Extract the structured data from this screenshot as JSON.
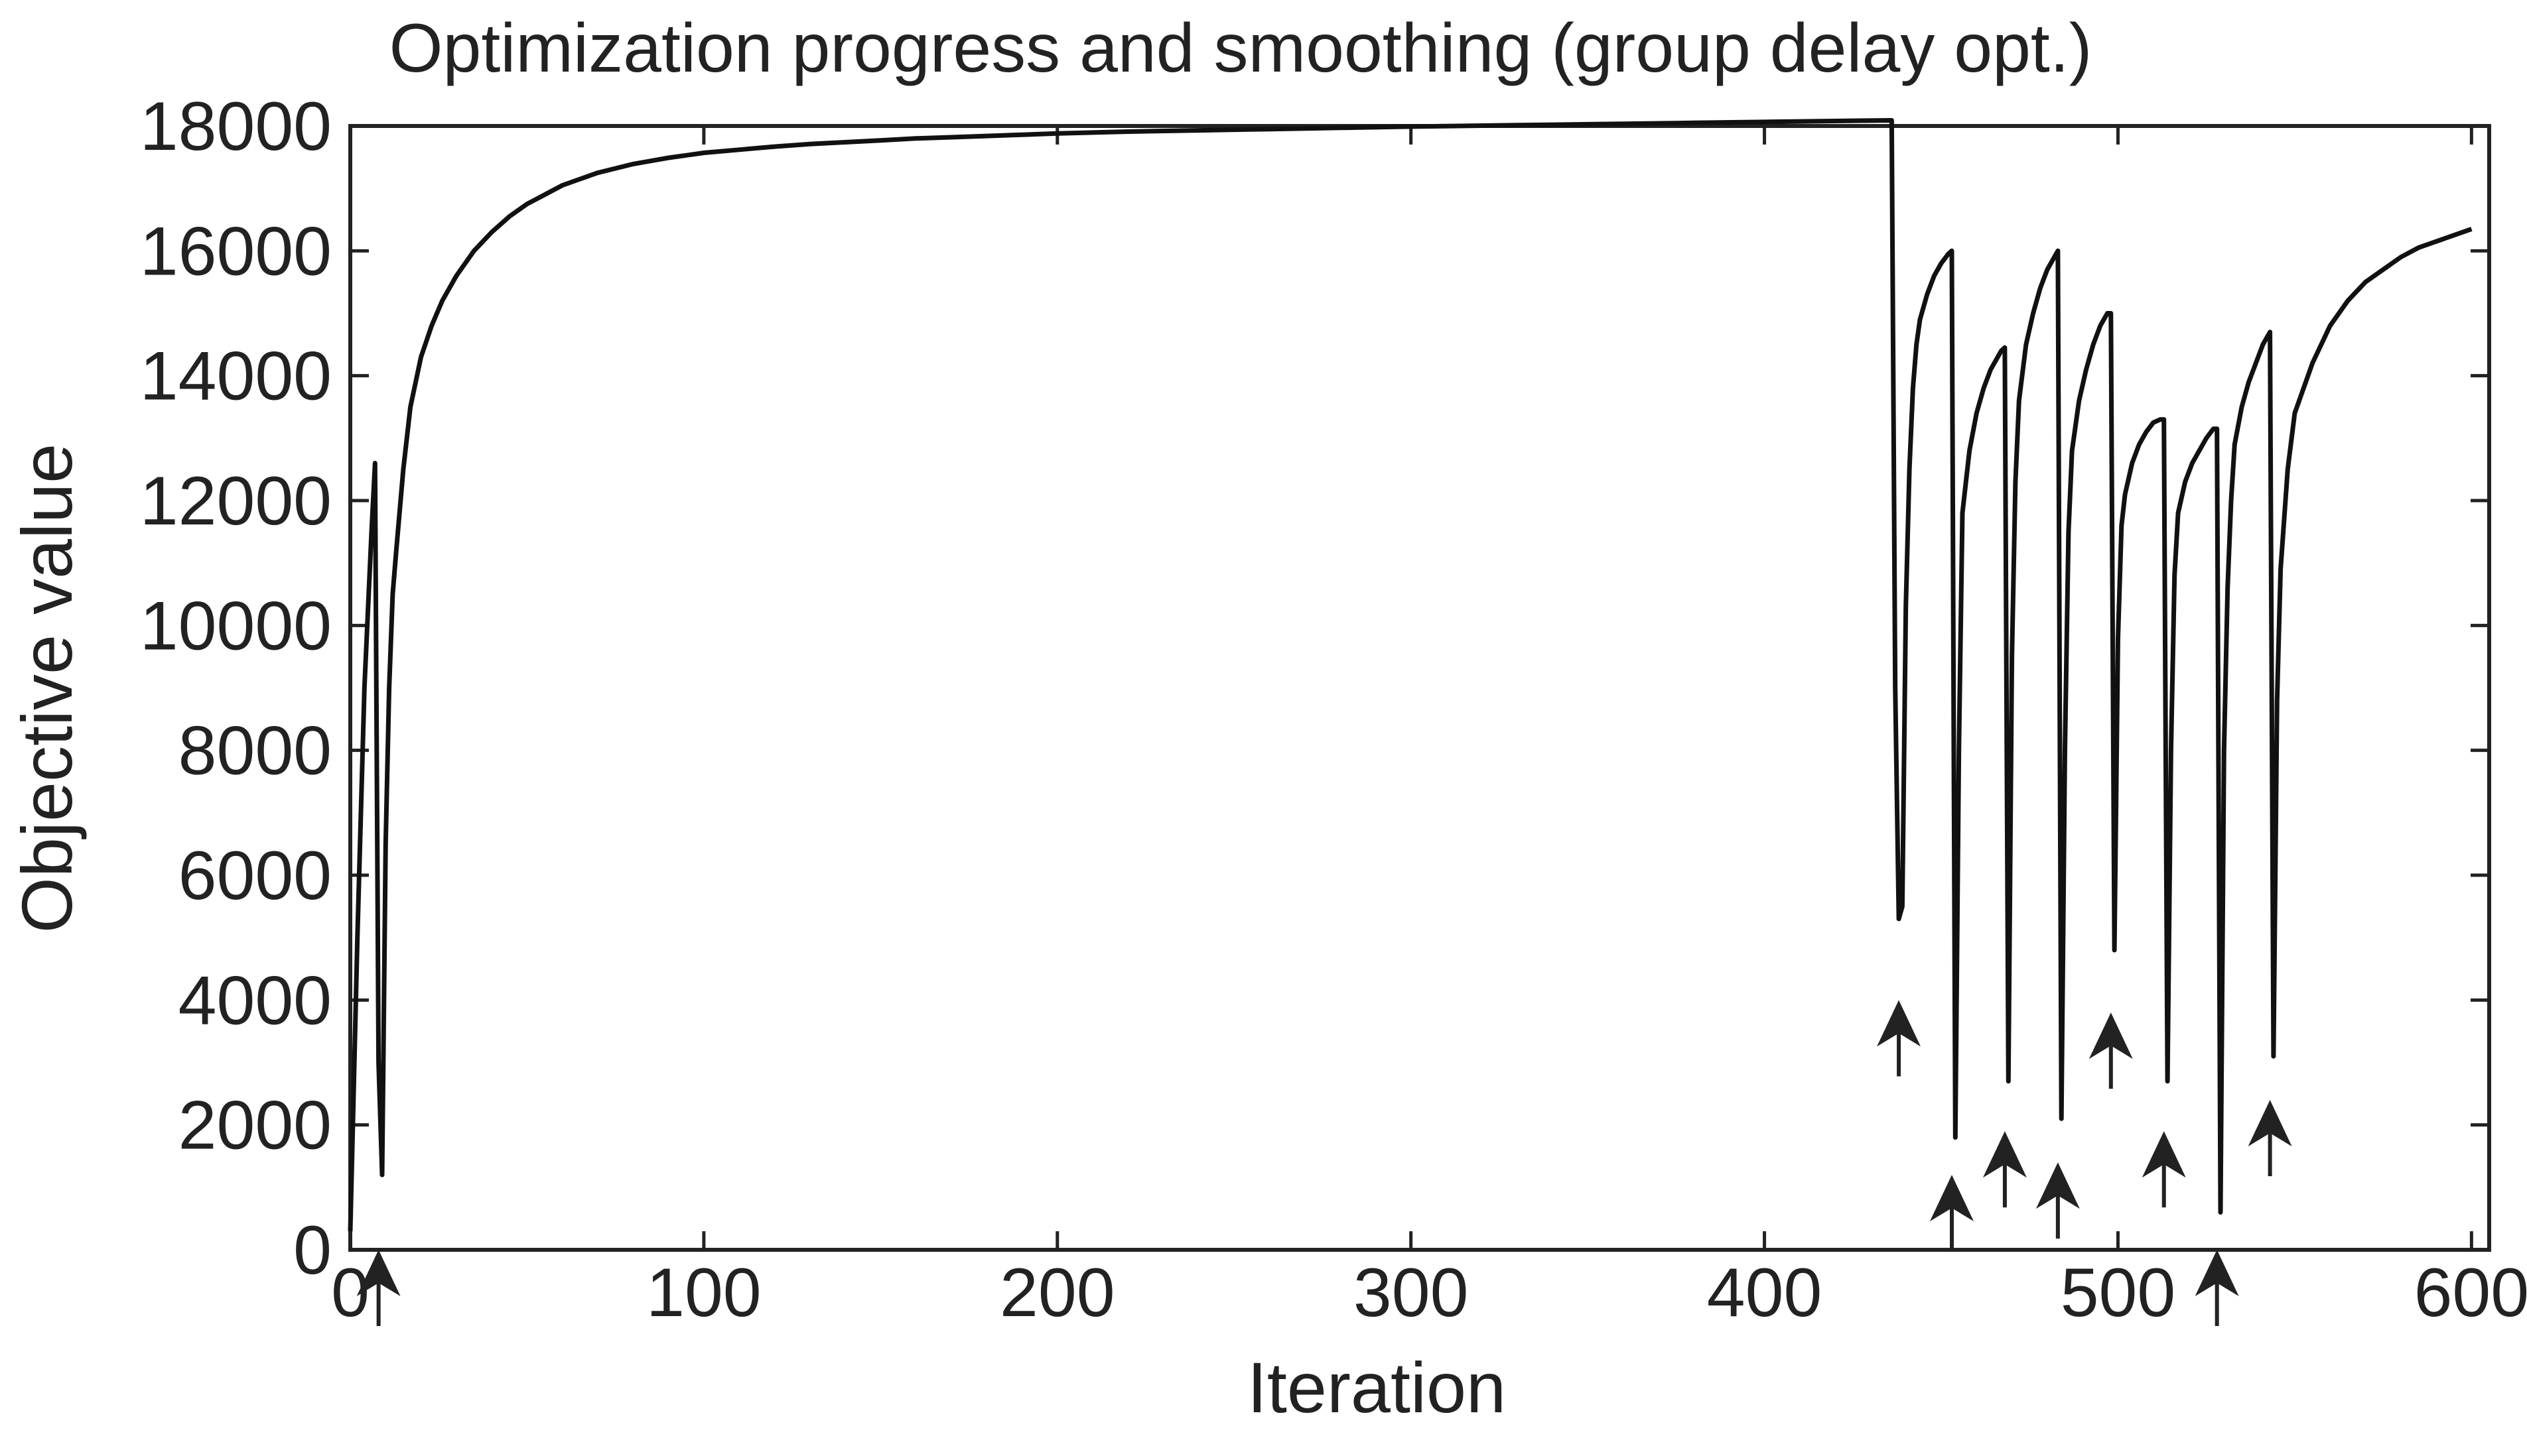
{
  "chart_data": {
    "type": "line",
    "title": "Optimization progress and smoothing (group delay opt.)",
    "xlabel": "Iteration",
    "ylabel": "Objective value",
    "xlim": [
      0,
      605
    ],
    "ylim": [
      0,
      18000
    ],
    "xticks": [
      0,
      100,
      200,
      300,
      400,
      500,
      600
    ],
    "yticks": [
      0,
      2000,
      4000,
      6000,
      8000,
      10000,
      12000,
      14000,
      16000,
      18000
    ],
    "grid": false,
    "legend": "none",
    "series": [
      {
        "x": [
          0,
          2,
          4,
          6,
          7,
          8,
          9,
          10,
          11,
          12,
          13,
          15,
          17,
          20,
          23,
          26,
          30,
          35,
          40,
          45,
          50,
          55,
          60,
          65,
          70,
          75,
          80,
          85,
          90,
          95,
          100,
          110,
          120,
          130,
          140,
          150,
          160,
          170,
          180,
          190,
          200,
          210,
          220,
          230,
          240,
          250,
          260,
          270,
          280,
          290,
          300,
          320,
          340,
          360,
          380,
          400,
          420,
          436,
          437,
          438,
          439,
          440,
          441,
          442,
          443,
          444,
          446,
          448,
          450,
          452,
          453,
          454,
          455,
          456,
          458,
          460,
          462,
          464,
          466,
          467,
          468,
          469,
          470,
          471,
          472,
          474,
          476,
          478,
          480,
          482,
          483,
          484,
          485,
          486,
          487,
          489,
          491,
          493,
          495,
          497,
          498,
          499,
          500,
          501,
          502,
          504,
          506,
          508,
          510,
          512,
          513,
          514,
          515,
          516,
          517,
          519,
          521,
          523,
          525,
          527,
          528,
          529,
          530,
          531,
          532,
          533,
          535,
          537,
          539,
          541,
          543,
          544,
          545,
          546,
          548,
          550,
          555,
          560,
          565,
          570,
          575,
          580,
          585,
          590,
          595,
          600
        ],
        "y": [
          300,
          5000,
          9000,
          11500,
          12600,
          3000,
          1200,
          6500,
          9000,
          10500,
          11200,
          12500,
          13500,
          14300,
          14800,
          15200,
          15600,
          16000,
          16300,
          16550,
          16750,
          16900,
          17050,
          17150,
          17250,
          17320,
          17390,
          17440,
          17490,
          17530,
          17570,
          17620,
          17670,
          17710,
          17740,
          17770,
          17800,
          17820,
          17840,
          17860,
          17880,
          17895,
          17910,
          17920,
          17930,
          17940,
          17950,
          17960,
          17970,
          17980,
          17990,
          18005,
          18020,
          18035,
          18050,
          18065,
          18080,
          18090,
          9000,
          5300,
          5500,
          10300,
          12500,
          13800,
          14500,
          14900,
          15300,
          15600,
          15800,
          15950,
          16000,
          1800,
          8000,
          11800,
          12800,
          13400,
          13800,
          14100,
          14300,
          14400,
          14450,
          2700,
          9500,
          12300,
          13600,
          14500,
          15000,
          15400,
          15700,
          15900,
          16000,
          2100,
          8000,
          11500,
          12800,
          13600,
          14100,
          14500,
          14800,
          15000,
          15000,
          4800,
          9800,
          11600,
          12100,
          12600,
          12900,
          13100,
          13250,
          13300,
          13300,
          2700,
          8000,
          10800,
          11800,
          12300,
          12600,
          12800,
          13000,
          13150,
          13150,
          600,
          8000,
          10600,
          12000,
          12900,
          13500,
          13900,
          14200,
          14500,
          14700,
          3100,
          8800,
          10900,
          12500,
          13400,
          14200,
          14800,
          15200,
          15500,
          15700,
          15900,
          16050,
          16150,
          16250,
          16350
        ]
      }
    ],
    "annotations": [
      {
        "type": "arrow",
        "x": 8,
        "y": 0
      },
      {
        "type": "arrow",
        "x": 438,
        "y": 4000
      },
      {
        "type": "arrow",
        "x": 453,
        "y": 1200
      },
      {
        "type": "arrow",
        "x": 468,
        "y": 1900
      },
      {
        "type": "arrow",
        "x": 483,
        "y": 1400
      },
      {
        "type": "arrow",
        "x": 498,
        "y": 3800
      },
      {
        "type": "arrow",
        "x": 513,
        "y": 1900
      },
      {
        "type": "arrow",
        "x": 528,
        "y": 0
      },
      {
        "type": "arrow",
        "x": 543,
        "y": 2400
      }
    ]
  }
}
